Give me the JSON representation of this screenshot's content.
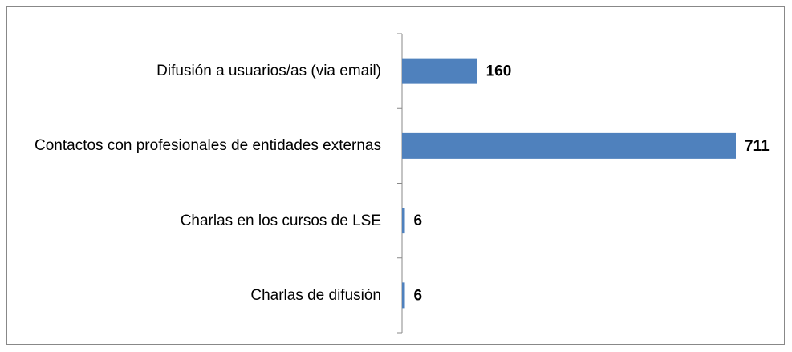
{
  "chart_data": {
    "type": "bar",
    "orientation": "horizontal",
    "categories": [
      "Difusión  a usuarios/as (via email)",
      "Contactos con profesionales de entidades externas",
      "Charlas en los cursos de  LSE",
      "Charlas de difusión"
    ],
    "values": [
      160,
      711,
      6,
      6
    ],
    "color": "#4f81bd"
  }
}
